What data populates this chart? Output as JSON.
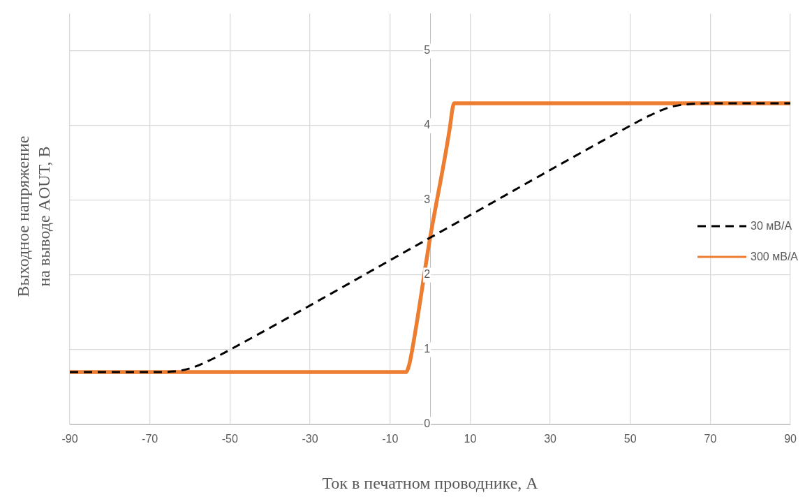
{
  "chart_data": {
    "type": "line",
    "xlabel": "Ток в печатном проводнике, А",
    "ylabel": "Выходное напряжение\nна выводе AOUT, В",
    "xlim": [
      -90,
      90
    ],
    "xticks": [
      -90,
      -70,
      -50,
      -30,
      -10,
      10,
      30,
      50,
      70,
      90
    ],
    "ylim": [
      0,
      5.5
    ],
    "yticks": [
      0,
      1,
      2,
      3,
      4,
      5
    ],
    "grid": true,
    "legend": "right",
    "marker": "none",
    "series": [
      {
        "name": "30 мВ/А",
        "color": "#000000",
        "line_style": "dashed",
        "x": [
          -90,
          -70,
          -64,
          -60,
          -55,
          -50,
          0,
          50,
          55,
          60,
          65,
          70,
          90
        ],
        "values": [
          0.7,
          0.7,
          0.71,
          0.75,
          0.86,
          1.0,
          2.5,
          4.0,
          4.14,
          4.25,
          4.29,
          4.3,
          4.3
        ]
      },
      {
        "name": "300 мВ/А",
        "color": "#ed7d31",
        "line_style": "solid",
        "x": [
          -90,
          -6,
          -5.5,
          -5,
          0,
          5,
          5.5,
          6,
          90
        ],
        "values": [
          0.7,
          0.7,
          0.75,
          0.85,
          2.5,
          4.0,
          4.2,
          4.3,
          4.3
        ]
      }
    ]
  }
}
